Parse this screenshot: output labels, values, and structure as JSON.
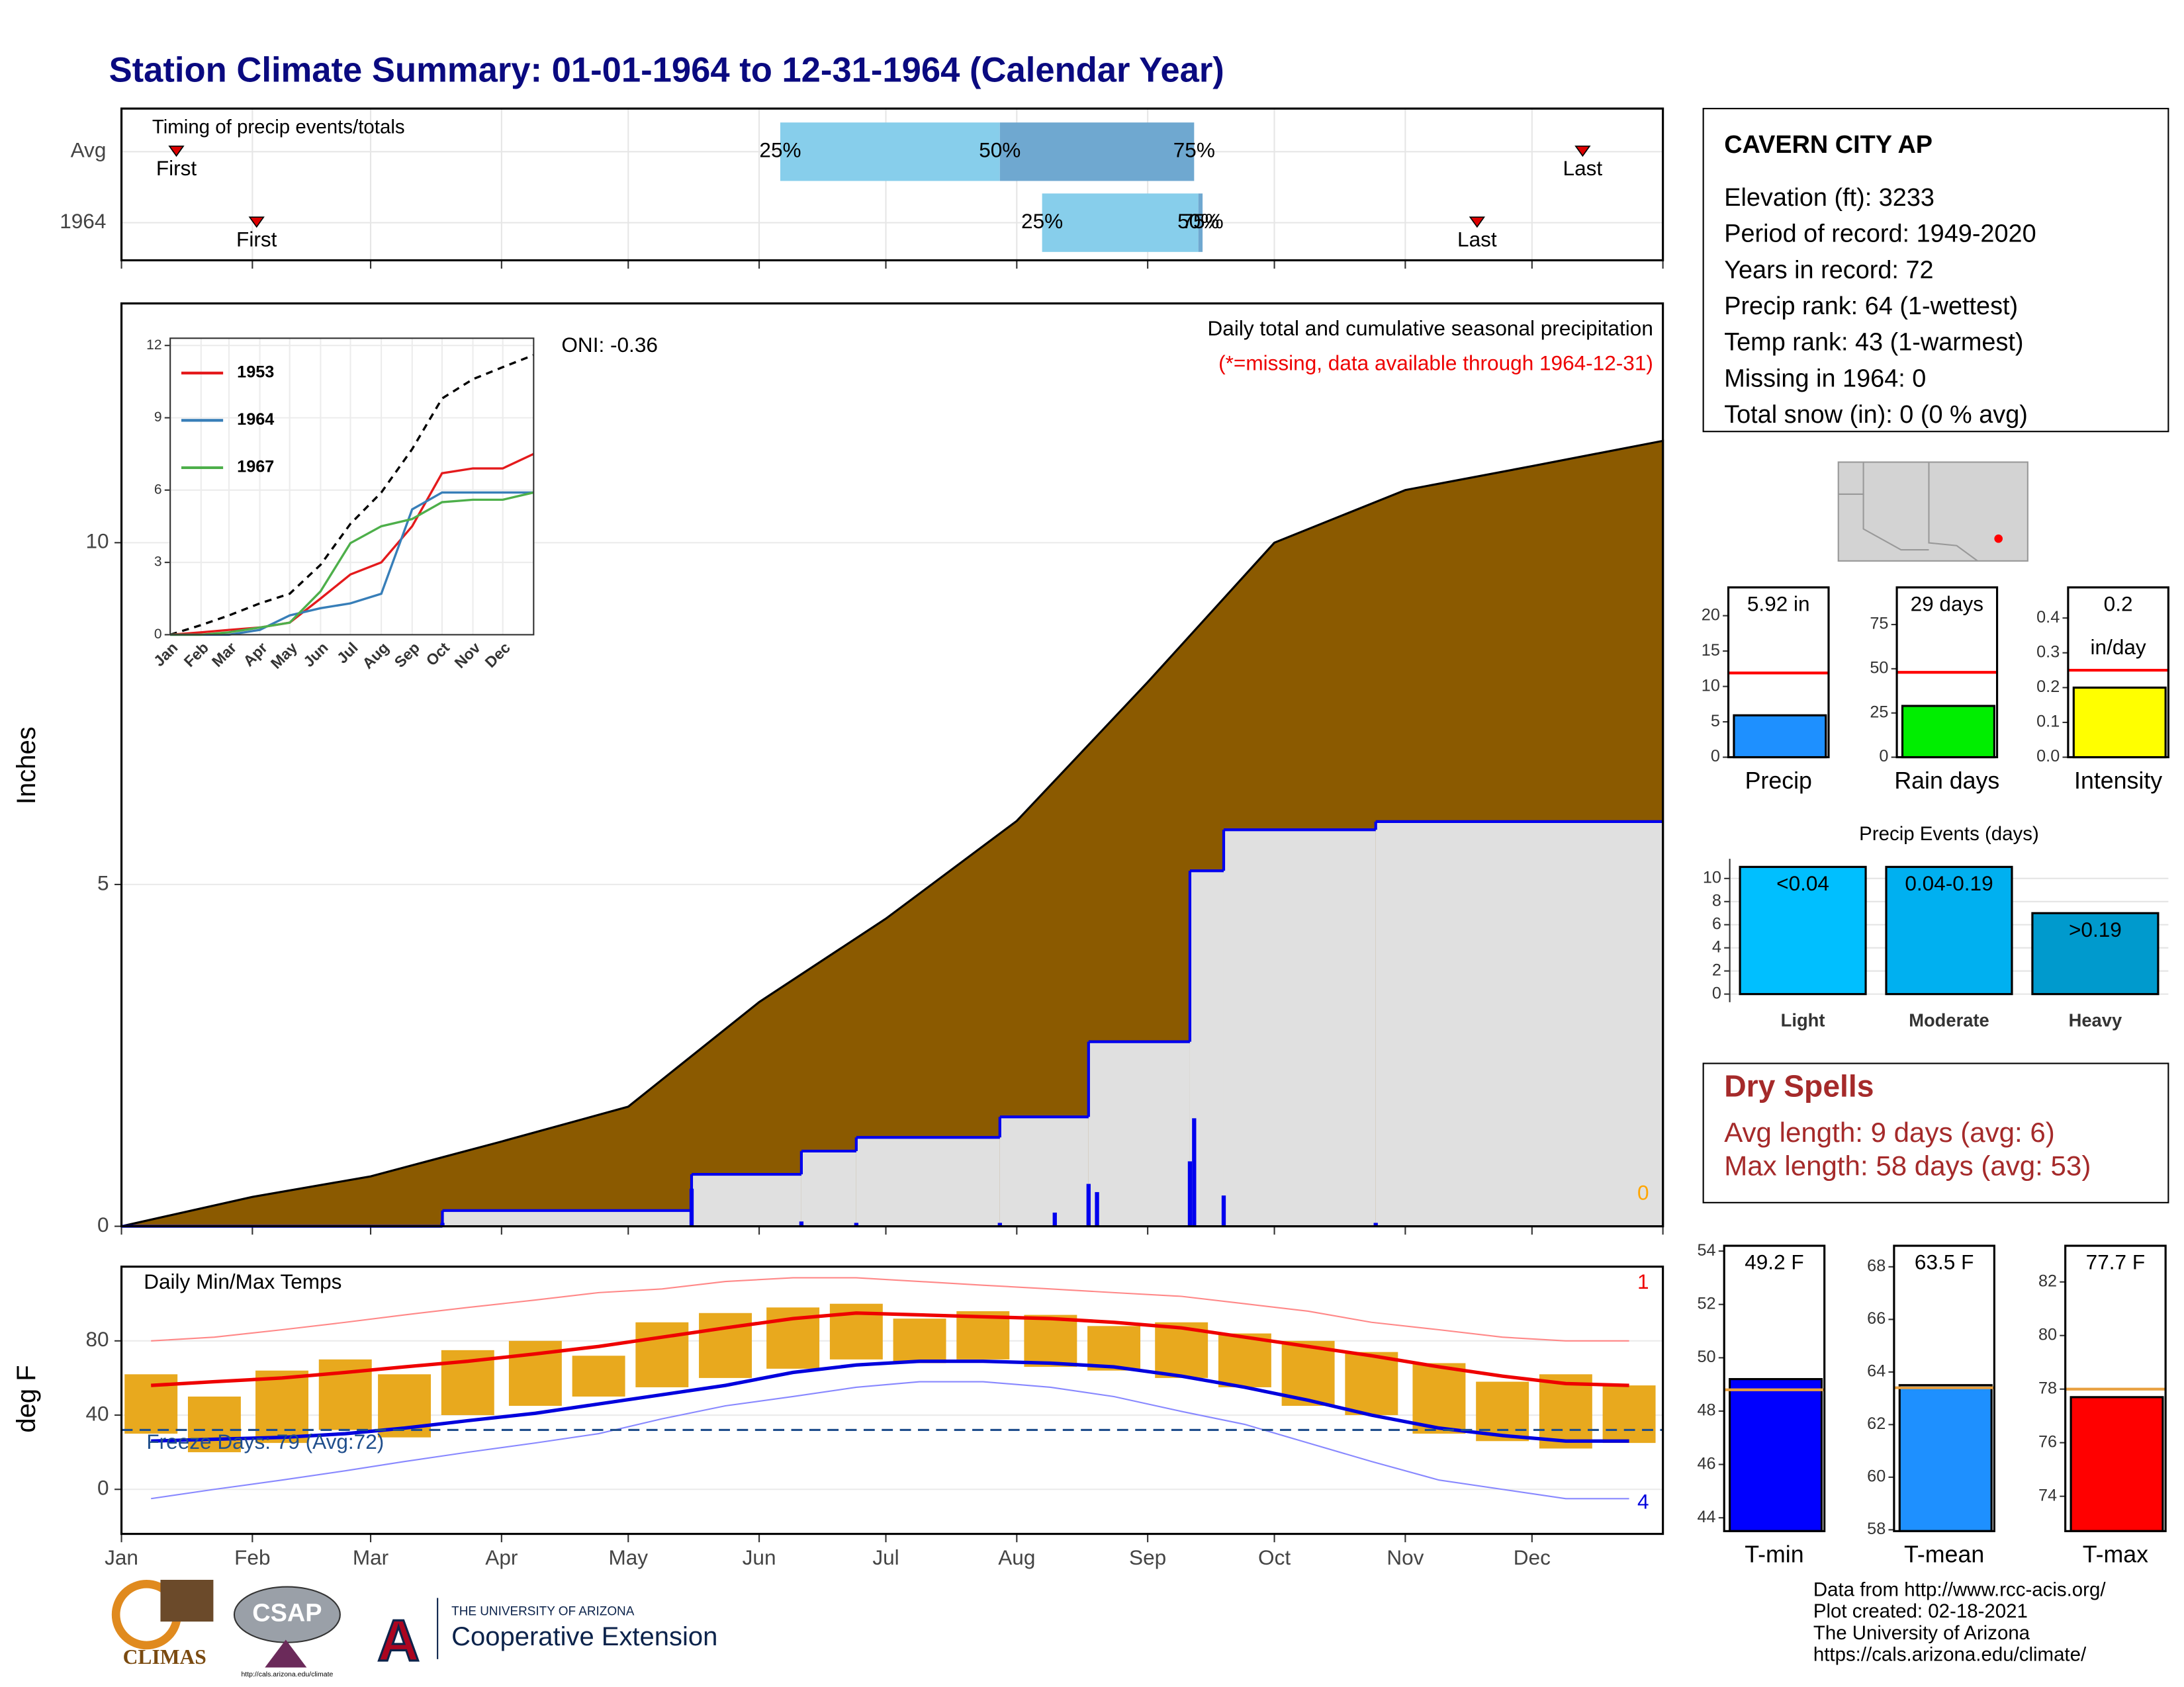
{
  "title": "Station Climate Summary: 01-01-1964 to 12-31-1964 (Calendar Year)",
  "station": {
    "name": "CAVERN CITY AP",
    "lines": [
      "Elevation (ft): 3233",
      "Period of record: 1949-2020",
      "Years in record: 72",
      "Precip rank: 64 (1-wettest)",
      "Temp rank: 43 (1-warmest)",
      "Missing in 1964: 0",
      "Total snow (in): 0 (0 % avg)"
    ]
  },
  "dry_spells": {
    "title": "Dry Spells",
    "lines": [
      "Avg length: 9 days (avg: 6)",
      "Max length: 58 days (avg: 53)"
    ]
  },
  "footer": [
    "Data from http://www.rcc-acis.org/",
    "Plot created: 02-18-2021",
    "The University of Arizona",
    "https://cals.arizona.edu/climate/"
  ],
  "logos": {
    "climas": "CLIMAS",
    "csap": "CSAP",
    "csap_url": "http://cals.arizona.edu/climate",
    "university": "THE UNIVERSITY OF ARIZONA",
    "extension": "Cooperative Extension"
  },
  "chart_data": [
    {
      "type": "timing",
      "title": "Timing of precip events/totals",
      "xlim": [
        1,
        366
      ],
      "xticks": [
        1,
        32,
        60,
        91,
        121,
        152,
        182,
        213,
        244,
        274,
        305,
        335,
        366
      ],
      "labels": {
        "first": "First",
        "last": "Last",
        "q25": "25%",
        "q50": "50%",
        "q75": "75%"
      },
      "colors": {
        "early": "#87ceeb",
        "late": "#6fa8d0",
        "marker": "#dd0000"
      },
      "rows": [
        {
          "name": "Avg",
          "first": 14,
          "last": 347,
          "q25": 157,
          "q50": 209,
          "q75": 255
        },
        {
          "name": "1964",
          "first": 33,
          "last": 322,
          "q25": 219,
          "q50": 256,
          "q75": 257
        }
      ]
    },
    {
      "type": "area",
      "title": "Daily total and cumulative seasonal precipitation",
      "subtitle": "(*=missing, data available through 1964-12-31)",
      "annotation": "ONI: -0.36",
      "missing_count": 0,
      "ylabel": "Inches",
      "xlim": [
        1,
        366
      ],
      "ylim": [
        0,
        13.5
      ],
      "yticks": [
        0,
        5,
        10
      ],
      "xticks": [
        1,
        32,
        60,
        91,
        121,
        152,
        182,
        213,
        244,
        274,
        305,
        335,
        366
      ],
      "grid": true,
      "average": {
        "color": "#8b5a00",
        "x": [
          1,
          32,
          60,
          91,
          121,
          152,
          182,
          213,
          244,
          274,
          305,
          335,
          366
        ],
        "values": [
          0,
          0.43,
          0.73,
          1.24,
          1.75,
          3.28,
          4.5,
          5.93,
          7.96,
          10,
          10.77,
          11.12,
          11.49
        ]
      },
      "year": {
        "color": "#0000ee",
        "fill": "#e0e0e0",
        "x": [
          1,
          77,
          136,
          162,
          175,
          209,
          230,
          254,
          262,
          298
        ],
        "values": [
          0,
          0.23,
          0.76,
          1.1,
          1.3,
          1.6,
          2.7,
          5.2,
          5.8,
          5.92
        ]
      },
      "daily": {
        "color": "#0000ee",
        "x": [
          77,
          136,
          162,
          175,
          209,
          222,
          230,
          232,
          254,
          255,
          262,
          298
        ],
        "values": [
          0.05,
          0.55,
          0.07,
          0.05,
          0.05,
          0.2,
          0.62,
          0.5,
          0.95,
          1.58,
          0.45,
          0.05
        ]
      }
    },
    {
      "type": "line",
      "xlim": [
        1,
        366
      ],
      "ylim": [
        0,
        12.3
      ],
      "yticks": [
        0,
        3,
        6,
        9,
        12
      ],
      "xticks": [
        {
          "value": 1,
          "label": "Jan"
        },
        {
          "value": 32,
          "label": "Feb"
        },
        {
          "value": 60,
          "label": "Mar"
        },
        {
          "value": 91,
          "label": "Apr"
        },
        {
          "value": 121,
          "label": "May"
        },
        {
          "value": 152,
          "label": "Jun"
        },
        {
          "value": 182,
          "label": "Jul"
        },
        {
          "value": 213,
          "label": "Aug"
        },
        {
          "value": 244,
          "label": "Sep"
        },
        {
          "value": 274,
          "label": "Oct"
        },
        {
          "value": 305,
          "label": "Nov"
        },
        {
          "value": 335,
          "label": "Dec"
        }
      ],
      "x": [
        1,
        32,
        60,
        91,
        121,
        152,
        182,
        213,
        244,
        274,
        305,
        335,
        366
      ],
      "average": {
        "color": "#000000",
        "values": [
          0,
          0.4,
          0.8,
          1.3,
          1.7,
          2.9,
          4.6,
          5.9,
          7.7,
          9.8,
          10.6,
          11.1,
          11.6
        ]
      },
      "series": [
        {
          "name": "1953",
          "color": "#e41a1c",
          "values": [
            0,
            0.1,
            0.2,
            0.3,
            0.5,
            1.5,
            2.5,
            3.0,
            4.5,
            6.7,
            6.9,
            6.9,
            7.5
          ]
        },
        {
          "name": "1964",
          "color": "#377eb8",
          "values": [
            0,
            0,
            0,
            0.2,
            0.8,
            1.1,
            1.3,
            1.7,
            5.2,
            5.9,
            5.9,
            5.9,
            5.9
          ]
        },
        {
          "name": "1967",
          "color": "#4daf4a",
          "values": [
            0,
            0,
            0.1,
            0.3,
            0.5,
            1.8,
            3.8,
            4.5,
            4.8,
            5.5,
            5.6,
            5.6,
            5.9
          ]
        }
      ]
    },
    {
      "type": "temps",
      "title": "Daily Min/Max Temps",
      "ylabel": "deg F",
      "xlim": [
        1,
        366
      ],
      "ylim": [
        -24,
        120
      ],
      "yticks": [
        0,
        40,
        80
      ],
      "xticks": [
        {
          "value": 1,
          "label": "Jan"
        },
        {
          "value": 32,
          "label": "Feb"
        },
        {
          "value": 60,
          "label": "Mar"
        },
        {
          "value": 91,
          "label": "Apr"
        },
        {
          "value": 121,
          "label": "May"
        },
        {
          "value": 152,
          "label": "Jun"
        },
        {
          "value": 182,
          "label": "Jul"
        },
        {
          "value": 213,
          "label": "Aug"
        },
        {
          "value": 244,
          "label": "Sep"
        },
        {
          "value": 274,
          "label": "Oct"
        },
        {
          "value": 305,
          "label": "Nov"
        },
        {
          "value": 335,
          "label": "Dec"
        }
      ],
      "freeze_line": 32,
      "freeze_label": "Freeze Days: 79 (Avg:72)",
      "record_high_count": 1,
      "record_low_count": 4,
      "x": [
        8,
        23,
        39,
        54,
        68,
        83,
        99,
        114,
        129,
        144,
        160,
        175,
        190,
        205,
        221,
        236,
        252,
        267,
        282,
        297,
        313,
        328,
        343,
        358
      ],
      "max": [
        62,
        50,
        64,
        70,
        62,
        75,
        80,
        72,
        90,
        95,
        98,
        100,
        92,
        96,
        94,
        88,
        90,
        84,
        80,
        74,
        68,
        58,
        62,
        56
      ],
      "min": [
        30,
        20,
        25,
        32,
        28,
        40,
        45,
        50,
        55,
        60,
        65,
        70,
        68,
        70,
        66,
        64,
        60,
        55,
        45,
        40,
        30,
        26,
        22,
        25
      ],
      "avg_max": [
        56,
        58,
        60,
        63,
        66,
        69,
        73,
        77,
        82,
        87,
        92,
        95,
        94,
        93,
        92,
        90,
        87,
        82,
        77,
        72,
        66,
        61,
        57,
        56
      ],
      "avg_min": [
        26,
        27,
        28,
        30,
        33,
        37,
        41,
        46,
        51,
        56,
        63,
        67,
        69,
        69,
        68,
        66,
        61,
        55,
        48,
        40,
        33,
        29,
        26,
        26
      ],
      "record_high": [
        80,
        82,
        86,
        90,
        94,
        98,
        102,
        106,
        108,
        112,
        114,
        114,
        112,
        110,
        108,
        106,
        104,
        100,
        96,
        90,
        86,
        82,
        80,
        80
      ],
      "record_low": [
        -5,
        0,
        5,
        10,
        15,
        20,
        25,
        30,
        38,
        45,
        50,
        55,
        58,
        58,
        55,
        50,
        42,
        35,
        25,
        15,
        5,
        0,
        -5,
        -5
      ],
      "colors": {
        "bars": "#e8a91e",
        "avg_max": "#ee0000",
        "avg_min": "#0000dd",
        "record_high": "#ff8888",
        "record_low": "#8888ff",
        "freeze": "#1f4e8c"
      }
    },
    {
      "type": "minibar",
      "label": "Precip",
      "value": 5.92,
      "value_label": "5.92 in",
      "average": 11.9,
      "color": "#1e90ff",
      "avg_color": "#ff0000",
      "ylim": [
        0,
        24
      ],
      "yticks": [
        0,
        5,
        10,
        15,
        20
      ]
    },
    {
      "type": "minibar",
      "label": "Rain days",
      "value": 29,
      "value_label": "29 days",
      "average": 48,
      "color": "#00ee00",
      "avg_color": "#ff0000",
      "ylim": [
        0,
        96
      ],
      "yticks": [
        0,
        25,
        50,
        75
      ]
    },
    {
      "type": "minibar",
      "label": "Intensity",
      "value": 0.2,
      "value_label": "0.2",
      "unit": "in/day",
      "average": 0.25,
      "color": "#ffff00",
      "avg_color": "#ff0000",
      "ylim": [
        0,
        0.488
      ],
      "yticks": [
        {
          "value": 0,
          "label": "0.0"
        },
        0.1,
        0.2,
        0.3,
        0.4
      ]
    },
    {
      "type": "minibar",
      "label": "T-min",
      "value": 49.2,
      "value_label": "49.2 F",
      "average": 48.8,
      "color": "#0000ff",
      "avg_color": "#e8a040",
      "ylim": [
        43.5,
        54.2
      ],
      "yticks": [
        44,
        46,
        48,
        50,
        52,
        54
      ]
    },
    {
      "type": "minibar",
      "label": "T-mean",
      "value": 63.5,
      "value_label": "63.5 F",
      "average": 63.4,
      "color": "#1e90ff",
      "avg_color": "#e8a040",
      "ylim": [
        57.95,
        68.8
      ],
      "yticks": [
        58,
        60,
        62,
        64,
        66,
        68
      ]
    },
    {
      "type": "minibar",
      "label": "T-max",
      "value": 77.7,
      "value_label": "77.7 F",
      "average": 78.0,
      "color": "#ff0000",
      "avg_color": "#e8a040",
      "ylim": [
        72.7,
        83.35
      ],
      "yticks": [
        74,
        76,
        78,
        80,
        82
      ]
    },
    {
      "type": "bar",
      "title": "Precip Events (days)",
      "categories": [
        "Light",
        "Moderate",
        "Heavy"
      ],
      "bin_labels": [
        "<0.04",
        "0.04-0.19",
        ">0.19"
      ],
      "values": [
        11,
        11,
        7
      ],
      "colors": [
        "#00bfff",
        "#00b0f0",
        "#009acd"
      ],
      "ylim": [
        -0.7,
        11.7
      ],
      "yticks": [
        0,
        2,
        4,
        6,
        8,
        10
      ],
      "grid": true
    }
  ]
}
